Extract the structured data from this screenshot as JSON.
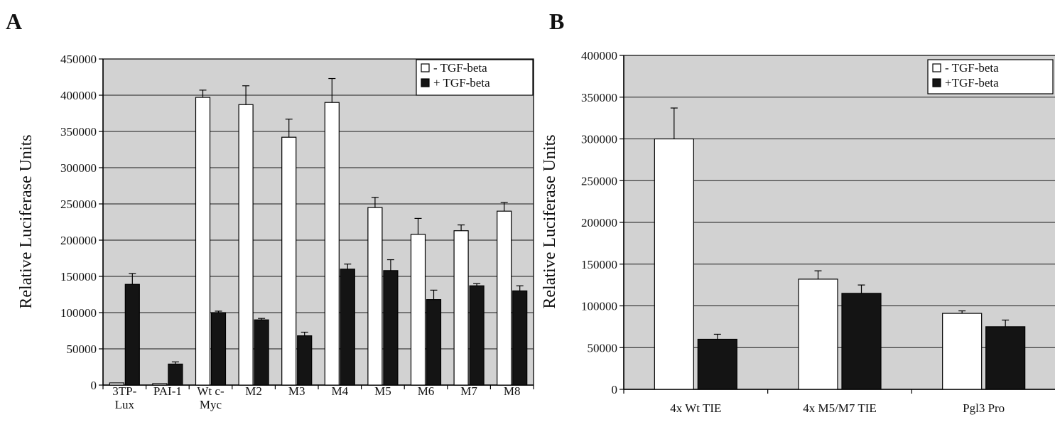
{
  "panels": {
    "a_label": "A",
    "b_label": "B"
  },
  "colors": {
    "plot_bg": "#d2d2d2",
    "gridline": "#1a1a1a",
    "minus_bar": "#ffffff",
    "plus_bar": "#141414",
    "axis": "#000000"
  },
  "chart_data": [
    {
      "type": "bar",
      "panel": "A",
      "title": "",
      "xlabel": "",
      "ylabel": "Relative Luciferase Units",
      "ylim": [
        0,
        450000
      ],
      "yticks": [
        0,
        50000,
        100000,
        150000,
        200000,
        250000,
        300000,
        350000,
        400000,
        450000
      ],
      "grid": true,
      "legend_position": "top-right",
      "categories": [
        [
          "3TP-",
          "Lux"
        ],
        [
          "PAI-1"
        ],
        [
          "Wt c-",
          "Myc"
        ],
        [
          "M2"
        ],
        [
          "M3"
        ],
        [
          "M4"
        ],
        [
          "M5"
        ],
        [
          "M6"
        ],
        [
          "M7"
        ],
        [
          "M8"
        ]
      ],
      "series": [
        {
          "name": "- TGF-beta",
          "legend_marker": "□",
          "values": [
            3000,
            2000,
            397000,
            387000,
            342000,
            390000,
            245000,
            208000,
            213000,
            240000
          ],
          "errors": [
            0,
            0,
            10000,
            26000,
            25000,
            33000,
            14000,
            22000,
            8000,
            12000
          ]
        },
        {
          "name": "+ TGF-beta",
          "legend_marker": "■",
          "values": [
            139000,
            29000,
            100000,
            90000,
            68000,
            160000,
            158000,
            118000,
            137000,
            130000
          ],
          "errors": [
            15000,
            3000,
            2000,
            2000,
            5000,
            7000,
            15000,
            13000,
            3000,
            7000
          ]
        }
      ]
    },
    {
      "type": "bar",
      "panel": "B",
      "title": "",
      "xlabel": "",
      "ylabel": "Relative Luciferase Units",
      "ylim": [
        0,
        400000
      ],
      "yticks": [
        0,
        50000,
        100000,
        150000,
        200000,
        250000,
        300000,
        350000,
        400000
      ],
      "grid": true,
      "legend_position": "top-right",
      "categories": [
        [
          "4x Wt TIE"
        ],
        [
          "4x M5/M7 TIE"
        ],
        [
          "Pgl3 Pro"
        ]
      ],
      "series": [
        {
          "name": "- TGF-beta",
          "legend_marker": "□",
          "values": [
            300000,
            132000,
            91000
          ],
          "errors": [
            37000,
            10000,
            3000
          ]
        },
        {
          "name": "+TGF-beta",
          "legend_marker": "■",
          "values": [
            60000,
            115000,
            75000
          ],
          "errors": [
            6000,
            10000,
            8000
          ]
        }
      ]
    }
  ]
}
